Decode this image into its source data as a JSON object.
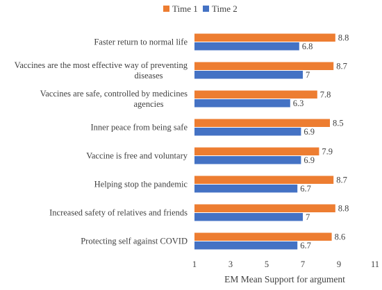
{
  "chart_data": {
    "type": "bar",
    "orientation": "horizontal",
    "categories": [
      [
        "Faster return to normal life"
      ],
      [
        "Vaccines are the most effective way of preventing",
        "diseases"
      ],
      [
        "Vaccines are safe, controlled by medicines",
        "agencies"
      ],
      [
        "Inner peace from being safe"
      ],
      [
        "Vaccine is free and voluntary"
      ],
      [
        "Helping stop the pandemic"
      ],
      [
        "Increased safety of relatives and friends"
      ],
      [
        "Protecting self against COVID"
      ]
    ],
    "series": [
      {
        "name": "Time 1",
        "color": "#ED7D31",
        "values": [
          8.8,
          8.7,
          7.8,
          8.5,
          7.9,
          8.7,
          8.8,
          8.6
        ]
      },
      {
        "name": "Time 2",
        "color": "#4472C4",
        "values": [
          6.8,
          7,
          6.3,
          6.9,
          6.9,
          6.7,
          7,
          6.7
        ]
      }
    ],
    "xlabel": "EM Mean Support for argument",
    "xlim": [
      1,
      11
    ],
    "xticks": [
      1,
      3,
      5,
      7,
      9,
      11
    ],
    "grid": false,
    "legend_position": "top"
  }
}
